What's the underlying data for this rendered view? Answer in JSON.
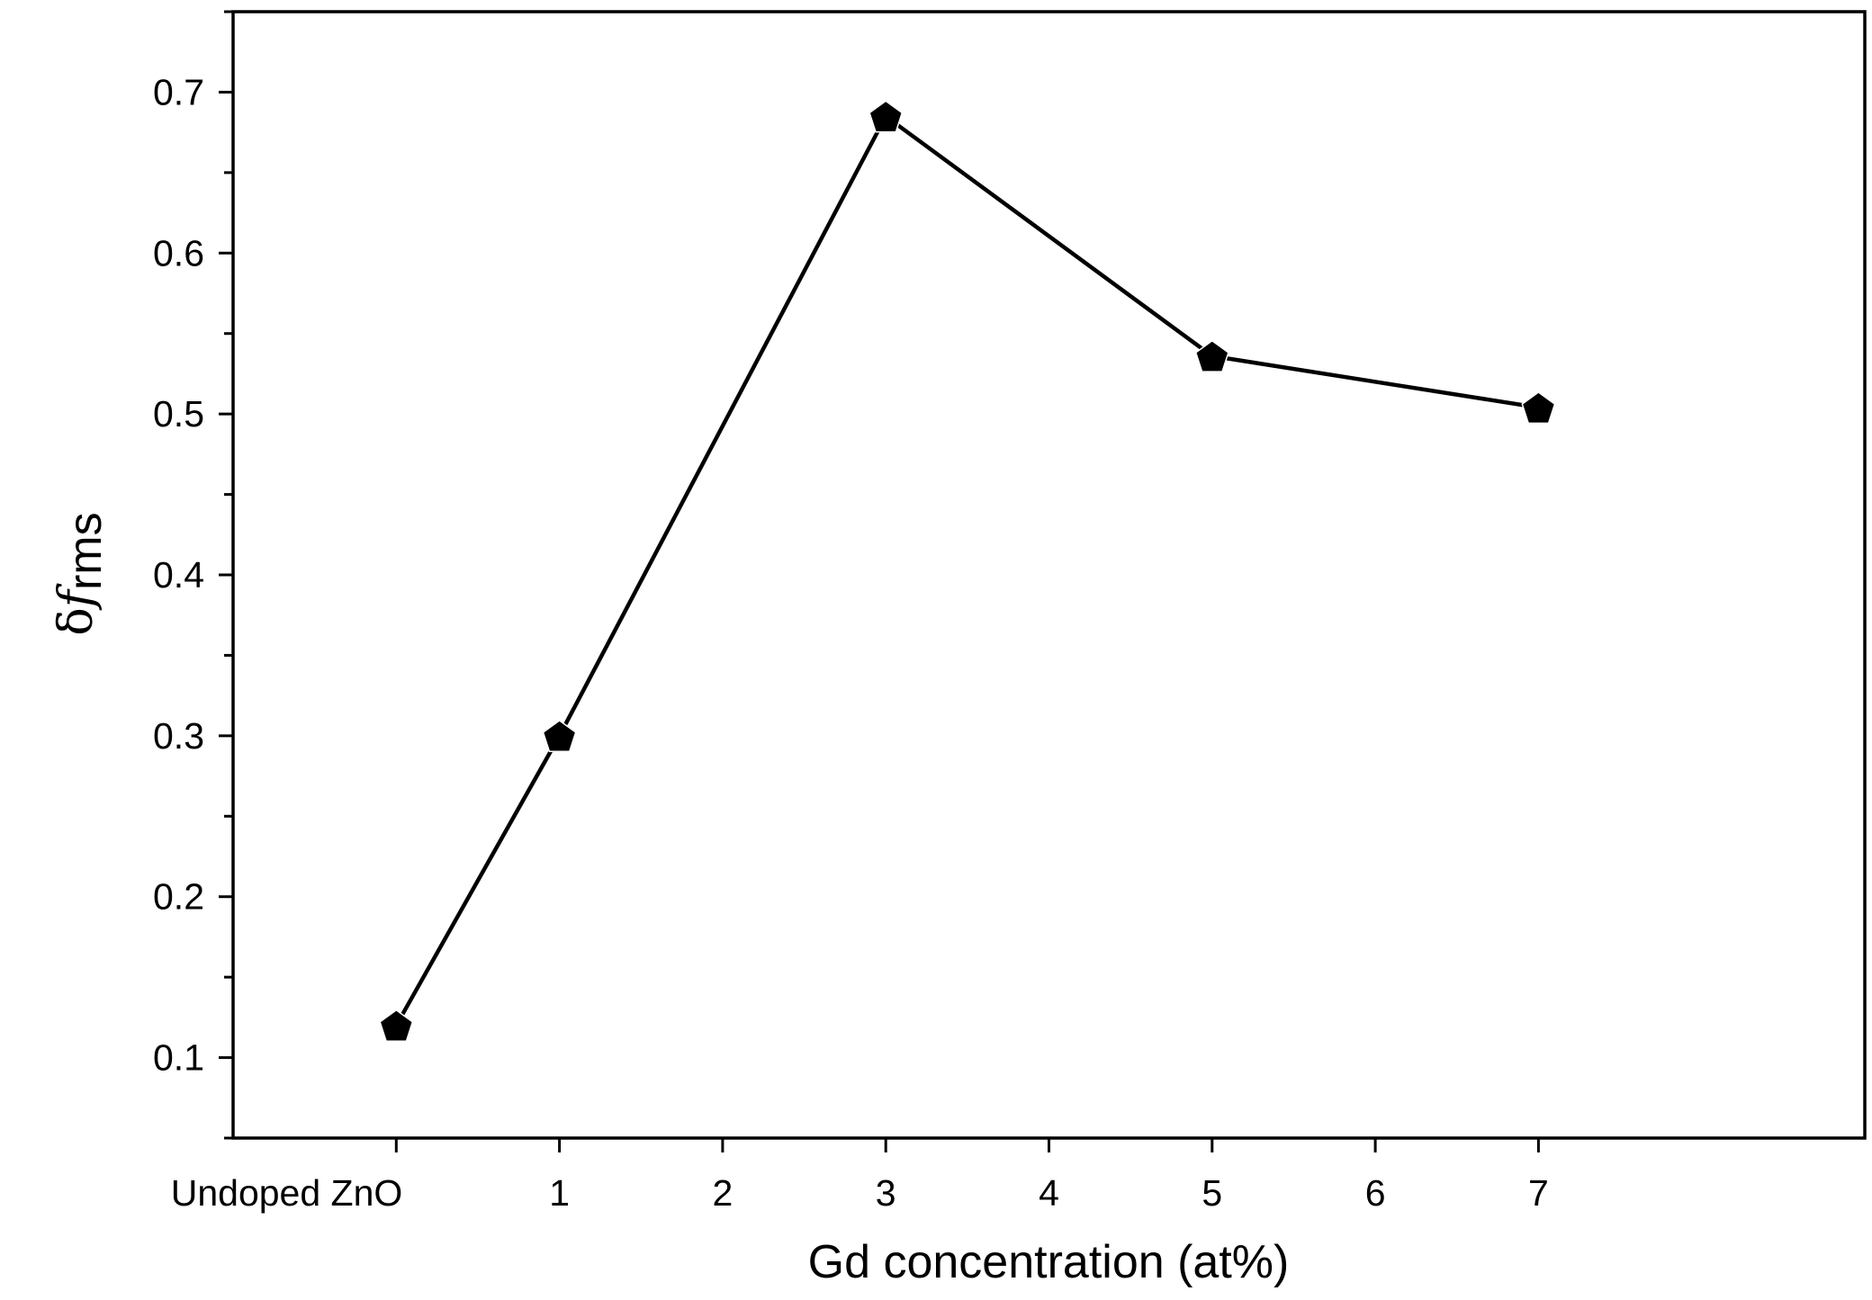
{
  "chart_data": {
    "type": "line",
    "title": "",
    "xlabel": "Gd concentration (at%)",
    "ylabel": {
      "symbol": "δ",
      "var": "f",
      "sub": "rms"
    },
    "x_ticks": [
      {
        "x": 0,
        "label": "Undoped ZnO"
      },
      {
        "x": 1,
        "label": "1"
      },
      {
        "x": 2,
        "label": "2"
      },
      {
        "x": 3,
        "label": "3"
      },
      {
        "x": 4,
        "label": "4"
      },
      {
        "x": 5,
        "label": "5"
      },
      {
        "x": 6,
        "label": "6"
      },
      {
        "x": 7,
        "label": "7"
      }
    ],
    "xlim": [
      -1,
      9
    ],
    "y_ticks": [
      "0.1",
      "0.2",
      "0.3",
      "0.4",
      "0.5",
      "0.6",
      "0.7"
    ],
    "ylim": [
      0.05,
      0.75
    ],
    "y_minor_step": 0.05,
    "grid": false,
    "marker": "pentagon",
    "line_color": "#000000",
    "series": [
      {
        "x": [
          0,
          1,
          3,
          5,
          7
        ],
        "values": [
          0.12,
          0.3,
          0.685,
          0.536,
          0.504
        ]
      }
    ]
  }
}
